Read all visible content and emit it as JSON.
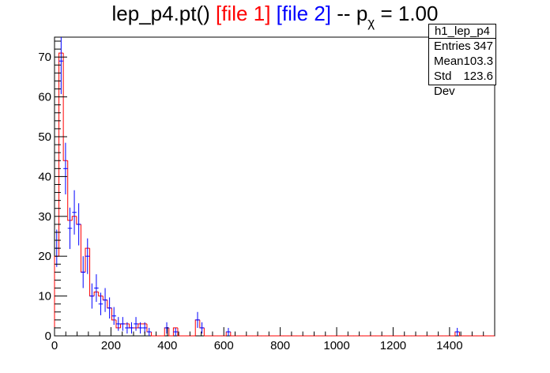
{
  "title": {
    "main": "lep_p4.pt()",
    "file1": "[file 1]",
    "file2": "[file 2]",
    "sep": "--",
    "p_symbol": "p",
    "p_sub": "χ",
    "p_value": "= 1.00"
  },
  "stats": {
    "name": "h1_lep_p4",
    "entries_label": "Entries",
    "entries": "347",
    "mean_label": "Mean",
    "mean": "103.3",
    "stddev_label": "Std Dev",
    "stddev": "123.6"
  },
  "colors": {
    "file1": "#ff0000",
    "file2": "#0000ff",
    "axis": "#000000"
  },
  "chart_data": {
    "type": "histogram",
    "title": "lep_p4.pt() [file 1] [file 2] -- p_χ = 1.00",
    "xlabel": "",
    "ylabel": "",
    "xlim": [
      0,
      1560
    ],
    "ylim": [
      0,
      75
    ],
    "xticks": [
      0,
      200,
      400,
      600,
      800,
      1000,
      1200,
      1400
    ],
    "yticks": [
      0,
      10,
      20,
      30,
      40,
      50,
      60,
      70
    ],
    "bin_width": 15.6,
    "series": [
      {
        "name": "[file 1]",
        "color": "#ff0000",
        "style": "step",
        "values": [
          20,
          71,
          44,
          29,
          30,
          28,
          16,
          22,
          10,
          11,
          10,
          9,
          7,
          4,
          2,
          3,
          3,
          2,
          2,
          3,
          3,
          1,
          0,
          0,
          0,
          2,
          0,
          2,
          0,
          0,
          0,
          0,
          4,
          2,
          0,
          0,
          0,
          0,
          0,
          1,
          0,
          0,
          0,
          0,
          0,
          0,
          0,
          0,
          0,
          0,
          0,
          0,
          0,
          0,
          0,
          0,
          0,
          0,
          0,
          0,
          0,
          0,
          0,
          0,
          0,
          0,
          0,
          0,
          0,
          0,
          0,
          0,
          0,
          0,
          0,
          0,
          0,
          0,
          0,
          0,
          0,
          0,
          0,
          0,
          0,
          0,
          0,
          0,
          0,
          0,
          0,
          1,
          0,
          0,
          0,
          0,
          0,
          0,
          0,
          0
        ]
      },
      {
        "name": "[file 2]",
        "color": "#0000ff",
        "style": "errorbar",
        "values": [
          22,
          69,
          42,
          27,
          31,
          28,
          16,
          20,
          10,
          12,
          8,
          9,
          7,
          5,
          3,
          3,
          2,
          2,
          3,
          2,
          2,
          1,
          0,
          0,
          0,
          2,
          0,
          1,
          0,
          0,
          0,
          0,
          4,
          2,
          0,
          0,
          0,
          0,
          0,
          1,
          0,
          0,
          0,
          0,
          0,
          0,
          0,
          0,
          0,
          0,
          0,
          0,
          0,
          0,
          0,
          0,
          0,
          0,
          0,
          0,
          0,
          0,
          0,
          0,
          0,
          0,
          0,
          0,
          0,
          0,
          0,
          0,
          0,
          0,
          0,
          0,
          0,
          0,
          0,
          0,
          0,
          0,
          0,
          0,
          0,
          0,
          0,
          0,
          0,
          0,
          0,
          1,
          0,
          0,
          0,
          0,
          0,
          0,
          0,
          0
        ]
      }
    ],
    "grid": false,
    "legend": "none"
  }
}
